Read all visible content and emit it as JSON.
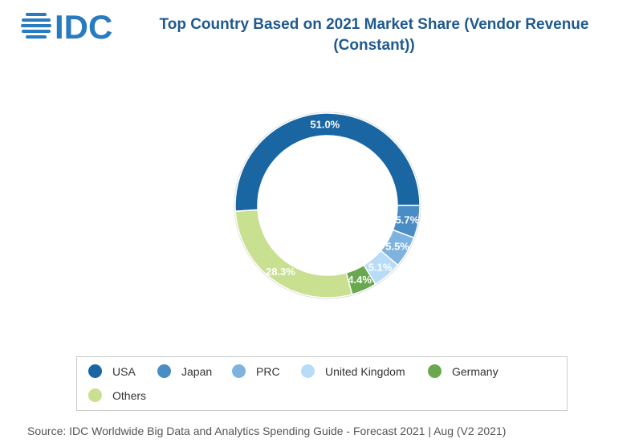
{
  "brand": {
    "logo_text": "IDC",
    "logo_color": "#2a7ac0"
  },
  "chart_data": {
    "type": "pie",
    "variant": "donut",
    "title": "Top Country Based on 2021 Market Share (Vendor Revenue (Constant))",
    "categories": [
      "USA",
      "Japan",
      "PRC",
      "United Kingdom",
      "Germany",
      "Others"
    ],
    "values": [
      51.0,
      5.7,
      5.5,
      5.1,
      4.4,
      28.3
    ],
    "value_labels": [
      "51.0%",
      "5.7%",
      "5.5%",
      "5.1%",
      "4.4%",
      "28.3%"
    ],
    "colors": [
      "#1a66a3",
      "#4a8cc4",
      "#7fb3df",
      "#b7dcf7",
      "#6aa84f",
      "#c8e08f"
    ],
    "legend_position": "bottom",
    "grid": false
  },
  "legend": {
    "items": [
      {
        "label": "USA",
        "color": "#1a66a3"
      },
      {
        "label": "Japan",
        "color": "#4a8cc4"
      },
      {
        "label": "PRC",
        "color": "#7fb3df"
      },
      {
        "label": "United Kingdom",
        "color": "#b7dcf7"
      },
      {
        "label": "Germany",
        "color": "#6aa84f"
      },
      {
        "label": "Others",
        "color": "#c8e08f"
      }
    ]
  },
  "footer": {
    "source": "Source: IDC Worldwide Big Data and Analytics Spending Guide - Forecast 2021 | Aug (V2 2021)"
  }
}
